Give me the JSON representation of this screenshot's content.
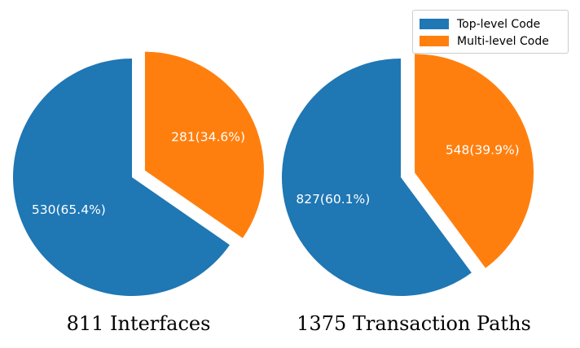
{
  "chart_data": [
    {
      "type": "pie",
      "title": "811 Interfaces",
      "categories": [
        "Top-level Code",
        "Multi-level Code"
      ],
      "values": [
        530,
        281
      ],
      "labels": [
        "530(65.4%)",
        "281(34.6%)"
      ],
      "exploded": "Multi-level Code",
      "colors": [
        "#1f77b4",
        "#ff7f0e"
      ]
    },
    {
      "type": "pie",
      "title": "1375 Transaction Paths",
      "categories": [
        "Top-level Code",
        "Multi-level Code"
      ],
      "values": [
        827,
        548
      ],
      "labels": [
        "827(60.1%)",
        "548(39.9%)"
      ],
      "exploded": "Multi-level Code",
      "colors": [
        "#1f77b4",
        "#ff7f0e"
      ]
    }
  ],
  "legend": {
    "placement": "top-right",
    "entries": [
      {
        "label": "Top-level Code",
        "color": "#1f77b4"
      },
      {
        "label": "Multi-level Code",
        "color": "#ff7f0e"
      }
    ]
  }
}
